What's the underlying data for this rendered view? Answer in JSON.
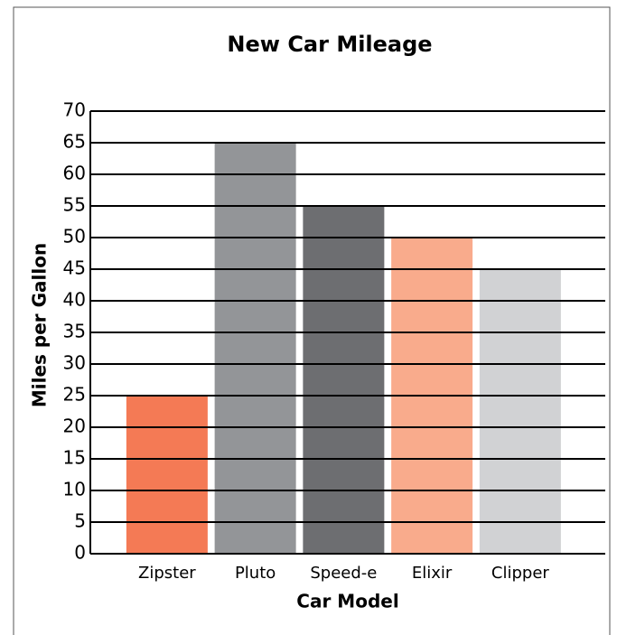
{
  "chart_data": {
    "type": "bar",
    "title": "New Car Mileage",
    "x_label": "Car Model",
    "y_label": "Miles per Gallon",
    "categories": [
      "Zipster",
      "Pluto",
      "Speed-e",
      "Elixir",
      "Clipper"
    ],
    "values": [
      25,
      65,
      55,
      50,
      45
    ],
    "colors": [
      "#f47a55",
      "#939598",
      "#6d6e71",
      "#f9ab8c",
      "#d1d2d4"
    ],
    "ylim": [
      0,
      70
    ],
    "yticks": [
      0,
      5,
      10,
      15,
      20,
      25,
      30,
      35,
      40,
      45,
      50,
      55,
      60,
      65,
      70
    ],
    "grid": true
  }
}
